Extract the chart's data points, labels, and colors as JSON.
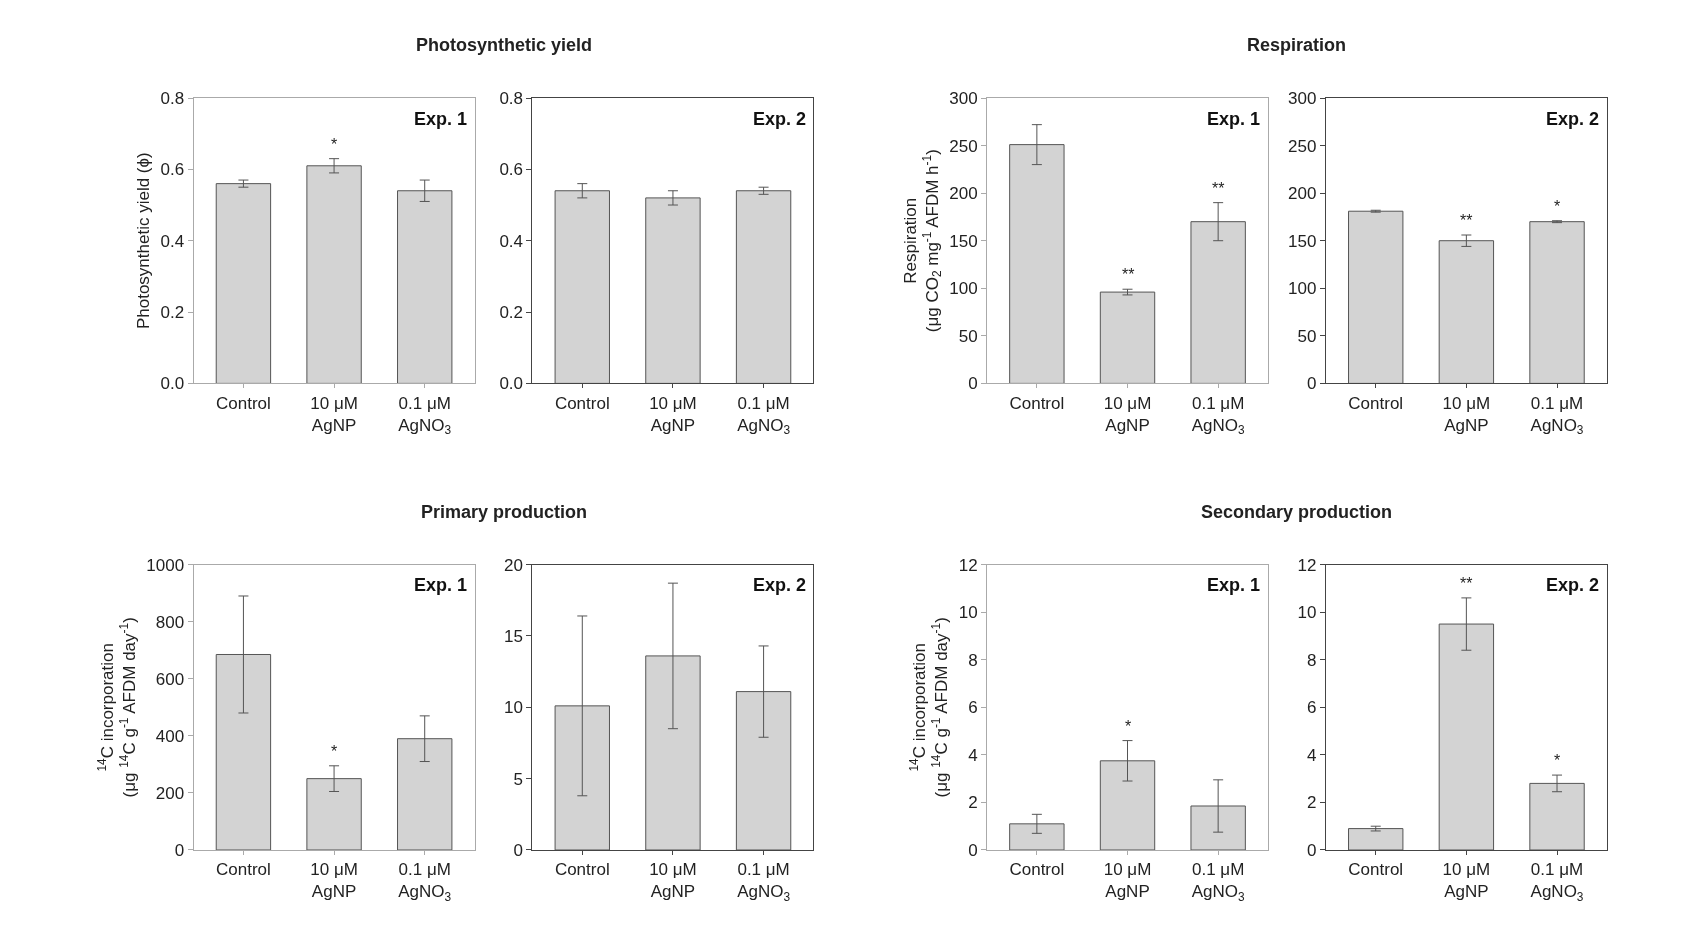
{
  "chart_data": [
    {
      "type": "bar",
      "title": "Photosynthetic yield",
      "ylabel": "Photosynthetic yield (ϕ)",
      "categories": [
        "Control",
        "10 μM\nAgNP",
        "0.1 μM\nAgNO$_{3}$"
      ],
      "values": [
        0.56,
        0.61,
        0.54
      ],
      "errors": [
        0.01,
        0.02,
        0.03
      ],
      "color": "#d3d3d3",
      "ylim": [
        0,
        0.8
      ],
      "yticks": [
        {
          "value": 0,
          "label": "0.0"
        },
        0.2,
        0.4,
        0.6,
        0.8
      ],
      "grid": false,
      "annotations": [
        "Exp. 1",
        {
          "text": "*",
          "x": "10 μM\nAgNP",
          "y": 0.61
        }
      ]
    },
    {
      "type": "bar",
      "categories": [
        "Control",
        "10 μM\nAgNP",
        "0.1 μM\nAgNO$_{3}$"
      ],
      "values": [
        0.54,
        0.52,
        0.54
      ],
      "errors": [
        0.02,
        0.02,
        0.01
      ],
      "color": "#d3d3d3",
      "ylim": [
        0,
        0.8
      ],
      "yticks": [
        {
          "value": 0,
          "label": "0.0"
        },
        0.2,
        0.4,
        0.6,
        0.8
      ],
      "grid": false,
      "annotations": [
        "Exp. 2"
      ]
    },
    {
      "type": "bar",
      "title": "Respiration",
      "ylabel": "Respiration\n(μg CO$_{2}$ mg$^{-1}$ AFDM h$^{-1}$)",
      "categories": [
        "Control",
        "10 μM\nAgNP",
        "0.1 μM\nAgNO$_{3}$"
      ],
      "values": [
        251,
        96,
        170
      ],
      "errors": [
        21,
        3,
        20
      ],
      "color": "#d3d3d3",
      "ylim": [
        0,
        300
      ],
      "yticks": [
        0,
        50,
        100,
        150,
        200,
        250,
        300
      ],
      "grid": false,
      "annotations": [
        "Exp. 1",
        {
          "text": "**",
          "x": "10 μM\nAgNP",
          "y": 96
        },
        {
          "text": "**",
          "x": "0.1 μM\nAgNO$_{3}$",
          "y": 170
        }
      ]
    },
    {
      "type": "bar",
      "categories": [
        "Control",
        "10 μM\nAgNP",
        "0.1 μM\nAgNO$_{3}$"
      ],
      "values": [
        181,
        150,
        170
      ],
      "errors": [
        1,
        6,
        1
      ],
      "color": "#d3d3d3",
      "ylim": [
        0,
        300
      ],
      "yticks": [
        0,
        50,
        100,
        150,
        200,
        250,
        300
      ],
      "grid": false,
      "annotations": [
        "Exp. 2",
        {
          "text": "**",
          "x": "10 μM\nAgNP",
          "y": 150
        },
        {
          "text": "*",
          "x": "0.1 μM\nAgNO$_{3}$",
          "y": 170
        }
      ]
    },
    {
      "type": "bar",
      "title": "Primary production",
      "ylabel": "$^{14}$C incorporation\n(μg $^{14}$C g$^{-1}$ AFDM day$^{-1}$)",
      "categories": [
        "Control",
        "10 μM\nAgNP",
        "0.1 μM\nAgNO$_{3}$"
      ],
      "values": [
        685,
        250,
        390
      ],
      "errors": [
        205,
        45,
        80
      ],
      "color": "#d3d3d3",
      "ylim": [
        0,
        1000
      ],
      "yticks": [
        0,
        200,
        400,
        600,
        800,
        1000
      ],
      "grid": false,
      "annotations": [
        "Exp. 1",
        {
          "text": "*",
          "x": "10 μM\nAgNP",
          "y": 250
        }
      ]
    },
    {
      "type": "bar",
      "categories": [
        "Control",
        "10 μM\nAgNP",
        "0.1 μM\nAgNO$_{3}$"
      ],
      "values": [
        10.1,
        13.6,
        11.1
      ],
      "errors": [
        6.3,
        5.1,
        3.2
      ],
      "color": "#d3d3d3",
      "ylim": [
        0,
        20
      ],
      "yticks": [
        0,
        5,
        10,
        15,
        20
      ],
      "grid": false,
      "annotations": [
        "Exp. 2"
      ]
    },
    {
      "type": "bar",
      "title": "Secondary production",
      "ylabel": "$^{14}$C incorporation\n(μg $^{14}$C g$^{-1}$ AFDM day$^{-1}$)",
      "categories": [
        "Control",
        "10 μM\nAgNP",
        "0.1 μM\nAgNO$_{3}$"
      ],
      "values": [
        1.1,
        3.75,
        1.85
      ],
      "errors": [
        0.4,
        0.85,
        1.1
      ],
      "color": "#d3d3d3",
      "ylim": [
        0,
        12
      ],
      "yticks": [
        0,
        2,
        4,
        6,
        8,
        10,
        12
      ],
      "grid": false,
      "annotations": [
        "Exp. 1",
        {
          "text": "*",
          "x": "10 μM\nAgNP",
          "y": 3.75
        }
      ]
    },
    {
      "type": "bar",
      "categories": [
        "Control",
        "10 μM\nAgNP",
        "0.1 μM\nAgNO$_{3}$"
      ],
      "values": [
        0.9,
        9.5,
        2.8
      ],
      "errors": [
        0.1,
        1.1,
        0.35
      ],
      "color": "#d3d3d3",
      "ylim": [
        0,
        12
      ],
      "yticks": [
        0,
        2,
        4,
        6,
        8,
        10,
        12
      ],
      "grid": false,
      "annotations": [
        "Exp. 2",
        {
          "text": "**",
          "x": "10 μM\nAgNP",
          "y": 9.5
        },
        {
          "text": "*",
          "x": "0.1 μM\nAgNO$_{3}$",
          "y": 2.8
        }
      ]
    }
  ]
}
